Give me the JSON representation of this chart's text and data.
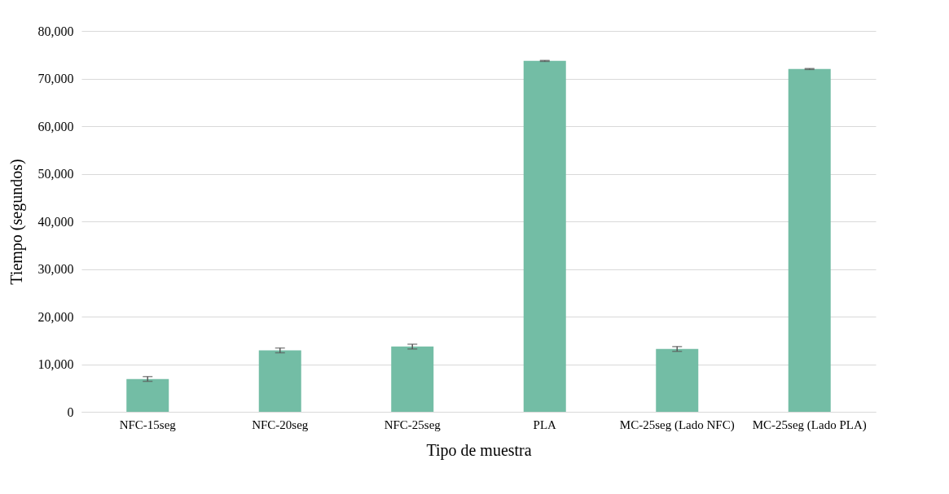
{
  "chart_data": {
    "type": "bar",
    "xlabel": "Tipo de muestra",
    "ylabel": "Tiempo (segundos)",
    "categories": [
      "NFC-15seg",
      "NFC-20seg",
      "NFC-25seg",
      "PLA",
      "MC-25seg (Lado NFC)",
      "MC-25seg (Lado PLA)"
    ],
    "values": [
      6900,
      12900,
      13700,
      73700,
      13200,
      72000
    ],
    "errors": [
      500,
      500,
      500,
      100,
      500,
      100
    ],
    "color": "#73bda5",
    "ylim": [
      0,
      80000
    ],
    "yticks": [
      0,
      {
        "value": 10000,
        "label": "10,000"
      },
      {
        "value": 20000,
        "label": "20,000"
      },
      {
        "value": 30000,
        "label": "30,000"
      },
      {
        "value": 40000,
        "label": "40,000"
      },
      {
        "value": 50000,
        "label": "50,000"
      },
      {
        "value": 60000,
        "label": "60,000"
      },
      {
        "value": 70000,
        "label": "70,000"
      },
      {
        "value": 80000,
        "label": "80,000"
      }
    ],
    "grid": "y"
  }
}
